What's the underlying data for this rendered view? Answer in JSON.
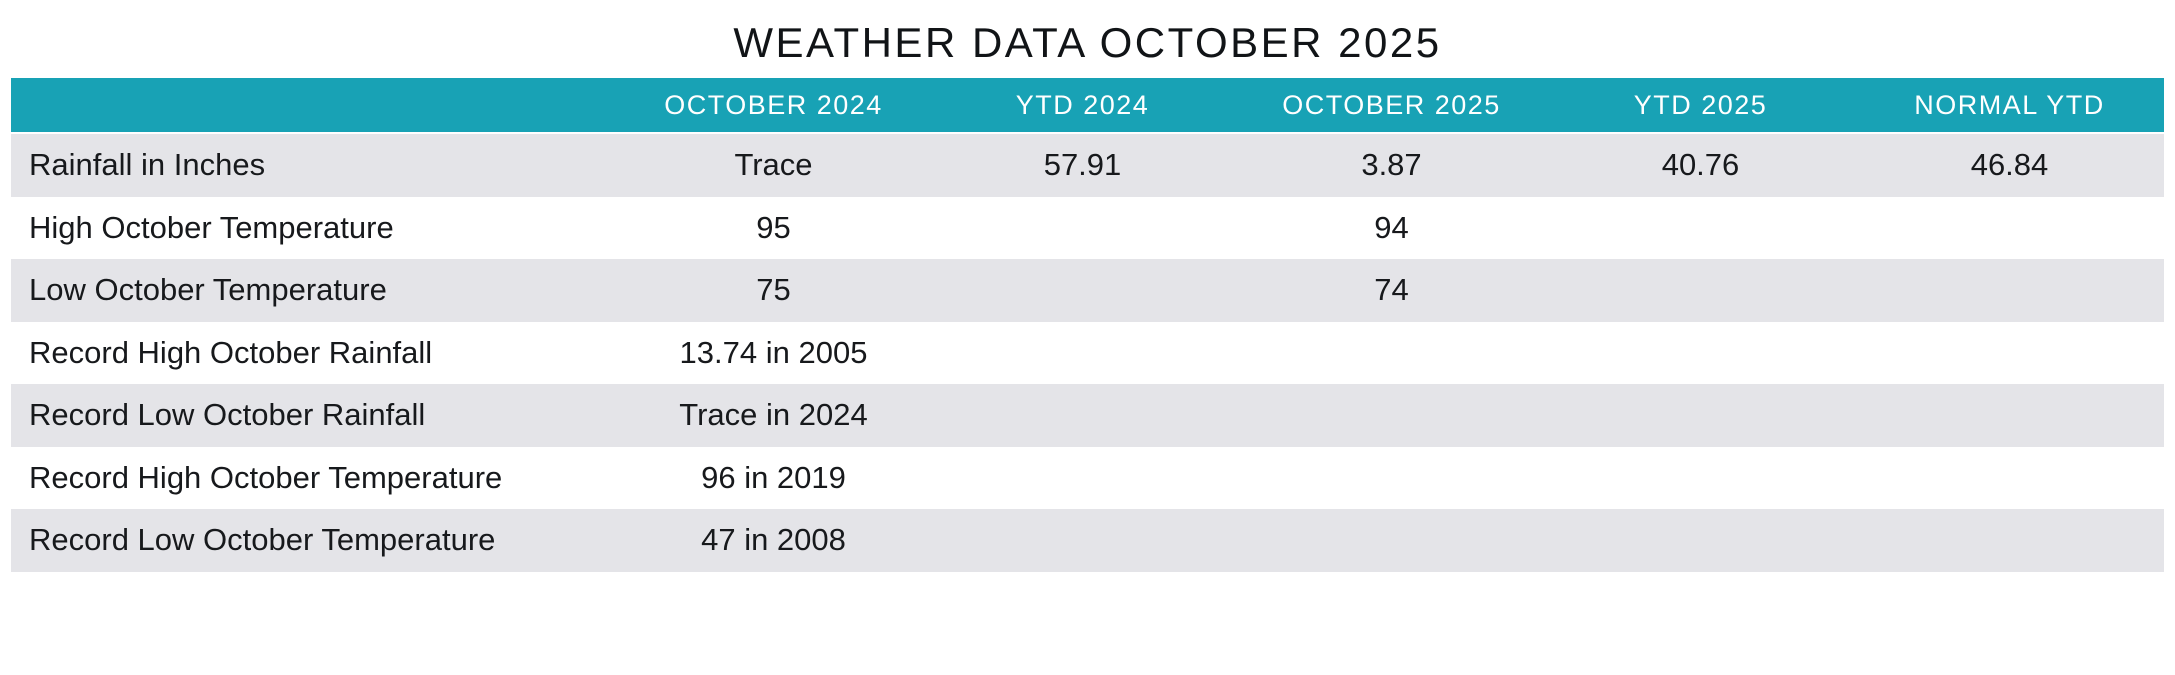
{
  "title": "WEATHER DATA OCTOBER 2025",
  "colors": {
    "header_bg": "#18a2b5",
    "header_text": "#ffffff",
    "row_alt_bg": "#e4e4e8",
    "row_bg": "#ffffff",
    "text": "#17191c"
  },
  "chart_data": {
    "type": "table",
    "title": "WEATHER DATA OCTOBER 2025",
    "columns": [
      "",
      "OCTOBER 2024",
      "YTD 2024",
      "OCTOBER 2025",
      "YTD 2025",
      "NORMAL YTD"
    ],
    "rows": [
      {
        "label": "Rainfall in Inches",
        "values": [
          "Trace",
          "57.91",
          "3.87",
          "40.76",
          "46.84"
        ]
      },
      {
        "label": "High October Temperature",
        "values": [
          "95",
          "",
          "94",
          "",
          ""
        ]
      },
      {
        "label": "Low October Temperature",
        "values": [
          "75",
          "",
          "74",
          "",
          ""
        ]
      },
      {
        "label": "Record High October Rainfall",
        "values": [
          "13.74 in 2005",
          "",
          "",
          "",
          ""
        ]
      },
      {
        "label": "Record Low October Rainfall",
        "values": [
          "Trace in 2024",
          "",
          "",
          "",
          ""
        ]
      },
      {
        "label": "Record High October Temperature",
        "values": [
          "96 in 2019",
          "",
          "",
          "",
          ""
        ]
      },
      {
        "label": "Record Low October Temperature",
        "values": [
          "47 in 2008",
          "",
          "",
          "",
          ""
        ]
      }
    ],
    "layout": {
      "header_style": "teal band, white uppercase text",
      "row_striping": "alternating gray/white starting gray",
      "first_column_align": "left",
      "value_align": "center"
    }
  }
}
